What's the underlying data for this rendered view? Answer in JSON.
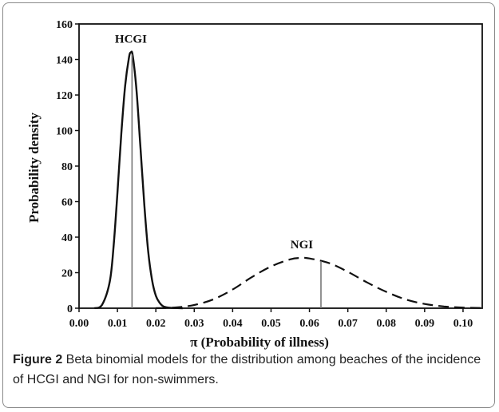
{
  "chart_data": {
    "type": "line",
    "xlabel": "π (Probability of illness)",
    "ylabel": "Probability density",
    "xlim": [
      0.0,
      0.105
    ],
    "ylim": [
      0,
      160
    ],
    "x_ticks": [
      "0.00",
      "0.01",
      "0.02",
      "0.03",
      "0.04",
      "0.05",
      "0.06",
      "0.07",
      "0.08",
      "0.09",
      "0.10"
    ],
    "y_ticks": [
      "0",
      "20",
      "40",
      "60",
      "80",
      "100",
      "120",
      "140",
      "160"
    ],
    "grid": false,
    "series": [
      {
        "name": "HCGI",
        "style": "solid",
        "x": [
          0.004,
          0.006,
          0.008,
          0.009,
          0.01,
          0.011,
          0.012,
          0.013,
          0.0135,
          0.014,
          0.015,
          0.016,
          0.017,
          0.018,
          0.019,
          0.02,
          0.021,
          0.022,
          0.024,
          0.027
        ],
        "y": [
          0,
          2,
          15,
          35,
          65,
          98,
          125,
          141,
          144,
          142,
          122,
          90,
          58,
          32,
          16,
          7,
          3,
          1,
          0.2,
          0
        ],
        "marker_x": 0.0138,
        "label": "HCGI"
      },
      {
        "name": "NGI",
        "style": "dashed",
        "x": [
          0.02,
          0.025,
          0.03,
          0.035,
          0.04,
          0.045,
          0.05,
          0.055,
          0.058,
          0.06,
          0.065,
          0.07,
          0.075,
          0.08,
          0.085,
          0.09,
          0.095,
          0.1,
          0.105
        ],
        "y": [
          0.05,
          0.4,
          1.8,
          5,
          10.5,
          17.5,
          23.5,
          27.5,
          28.3,
          28,
          25.5,
          20.5,
          14.5,
          9.2,
          5,
          2.4,
          1,
          0.35,
          0.1
        ],
        "marker_x": 0.063,
        "label": "NGI"
      }
    ]
  },
  "caption": {
    "label": "Figure 2",
    "text": " Beta binomial models for the distribution among beaches of the incidence of HCGI and NGI for non-swimmers."
  }
}
